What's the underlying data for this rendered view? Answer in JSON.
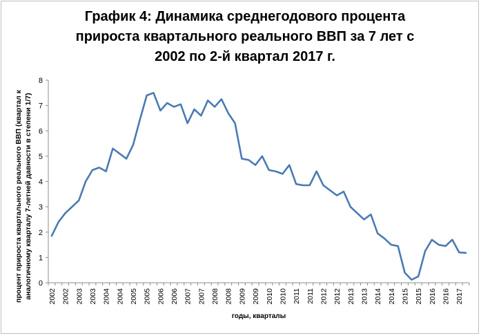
{
  "title_lines": [
    "График 4: Динамика среднегодового процента",
    "прироста квартального реального ВВП за 7 лет с",
    "2002 по 2-й квартал 2017 г."
  ],
  "ylabel_lines": [
    "процент прироста  квартального  реального  ВВП  (квартал  к",
    "аналогичному  кварталу  7-летней давности  в степени 1/7)"
  ],
  "xlabel": "годы, кварталы",
  "chart_data": {
    "type": "line",
    "title": "График 4: Динамика среднегодового процента прироста квартального реального ВВП за 7 лет с 2002 по 2-й квартал 2017 г.",
    "xlabel": "годы, кварталы",
    "ylabel": "процент прироста квартального реального ВВП (квартал к аналогичному кварталу 7-летней давности в степени 1/7)",
    "ylim": [
      0,
      8
    ],
    "yticks": [
      "0",
      "1",
      "2",
      "3",
      "4",
      "5",
      "6",
      "7",
      "8"
    ],
    "x_tick_labels": [
      "2002",
      "2002",
      "2003",
      "2003",
      "2004",
      "2004",
      "2005",
      "2005",
      "2006",
      "2006",
      "2007",
      "2007",
      "2008",
      "2008",
      "2009",
      "2009",
      "2010",
      "2010",
      "2011",
      "2011",
      "2012",
      "2012",
      "2013",
      "2013",
      "2014",
      "2014",
      "2015",
      "2015",
      "2016",
      "2016",
      "2017"
    ],
    "grid": false,
    "legend": "none",
    "color": "#4a7ab3",
    "series": [
      {
        "values": [
          1.85,
          2.4,
          2.75,
          3.0,
          3.25,
          4.0,
          4.45,
          4.55,
          4.4,
          5.3,
          5.1,
          4.9,
          5.45,
          6.45,
          7.4,
          7.5,
          6.8,
          7.1,
          6.95,
          7.05,
          6.3,
          6.85,
          6.6,
          7.2,
          6.95,
          7.25,
          6.7,
          6.3,
          4.9,
          4.85,
          4.65,
          5.0,
          4.45,
          4.4,
          4.3,
          4.65,
          3.9,
          3.85,
          3.85,
          4.4,
          3.85,
          3.65,
          3.45,
          3.6,
          3.0,
          2.75,
          2.5,
          2.7,
          1.95,
          1.75,
          1.5,
          1.45,
          0.4,
          0.12,
          0.25,
          1.25,
          1.7,
          1.5,
          1.45,
          1.7,
          1.2,
          1.18
        ]
      }
    ]
  }
}
